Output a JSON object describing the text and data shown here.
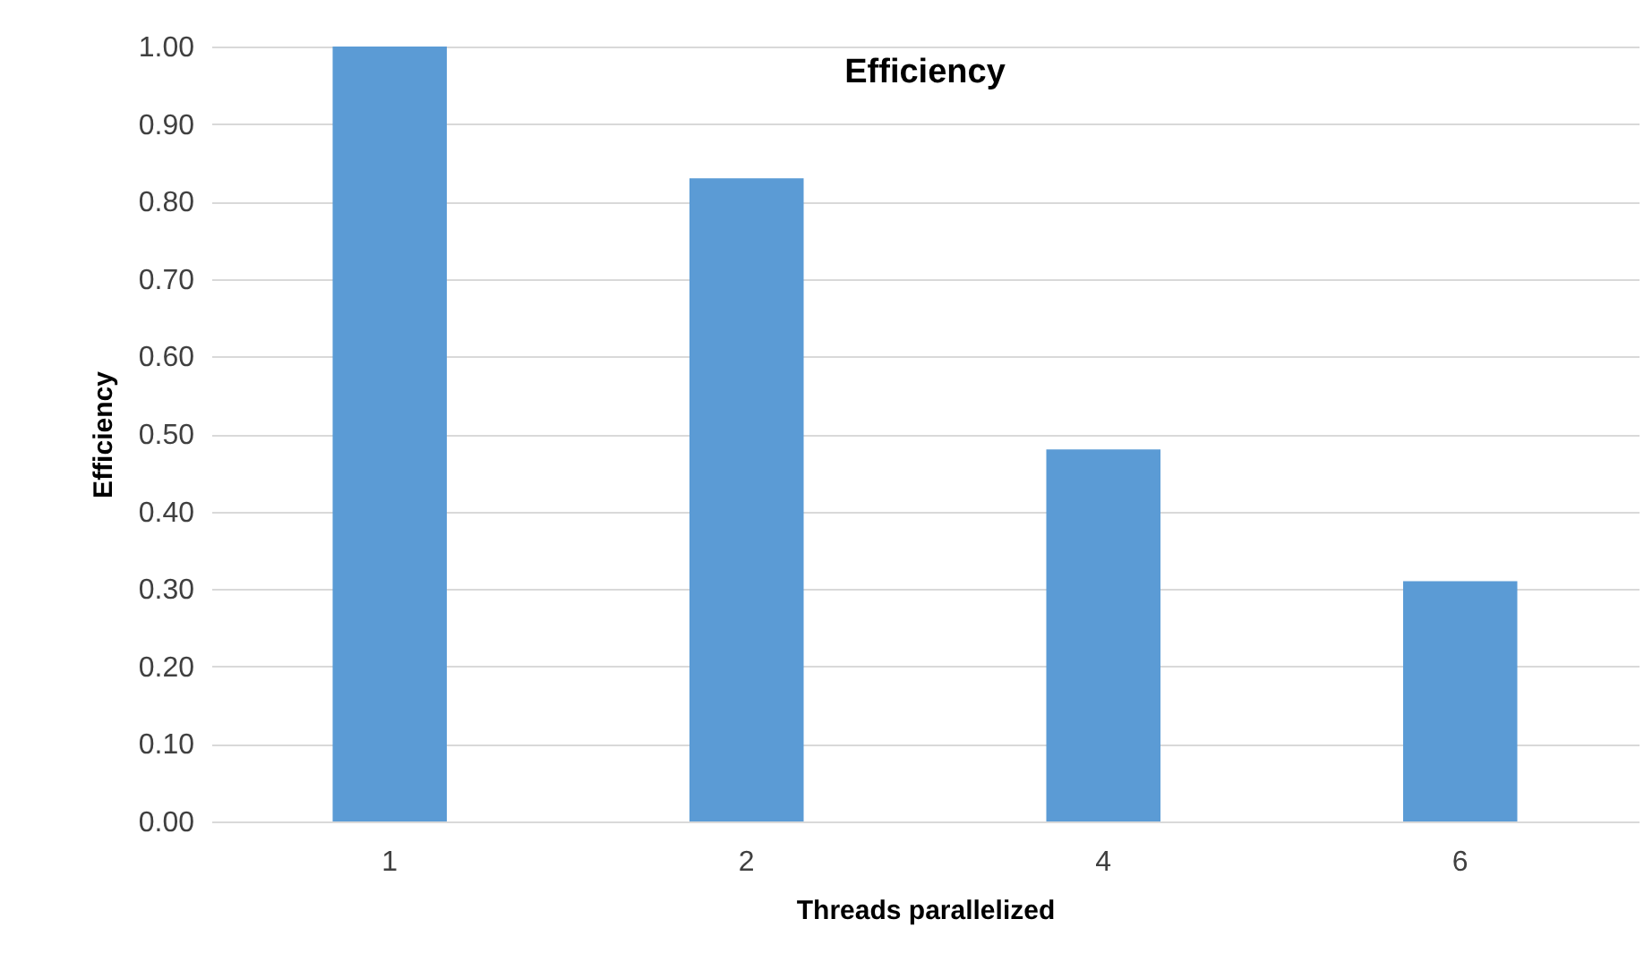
{
  "chart_data": {
    "type": "bar",
    "title": "Efficiency",
    "xlabel": "Threads parallelized",
    "ylabel": "Efficiency",
    "categories": [
      "1",
      "2",
      "4",
      "6"
    ],
    "series": [
      {
        "color": "#5b9bd5",
        "values": [
          1.0,
          0.83,
          0.48,
          0.31
        ]
      }
    ],
    "ylim": [
      0,
      1
    ],
    "yticks": [
      {
        "value": 0,
        "label": "0.00"
      },
      {
        "value": 0.1,
        "label": "0.10"
      },
      {
        "value": 0.2,
        "label": "0.20"
      },
      {
        "value": 0.3,
        "label": "0.30"
      },
      {
        "value": 0.4,
        "label": "0.40"
      },
      {
        "value": 0.5,
        "label": "0.50"
      },
      {
        "value": 0.6,
        "label": "0.60"
      },
      {
        "value": 0.7,
        "label": "0.70"
      },
      {
        "value": 0.8,
        "label": "0.80"
      },
      {
        "value": 0.9,
        "label": "0.90"
      },
      {
        "value": 1,
        "label": "1.00"
      }
    ],
    "grid": "y",
    "legend": false
  }
}
